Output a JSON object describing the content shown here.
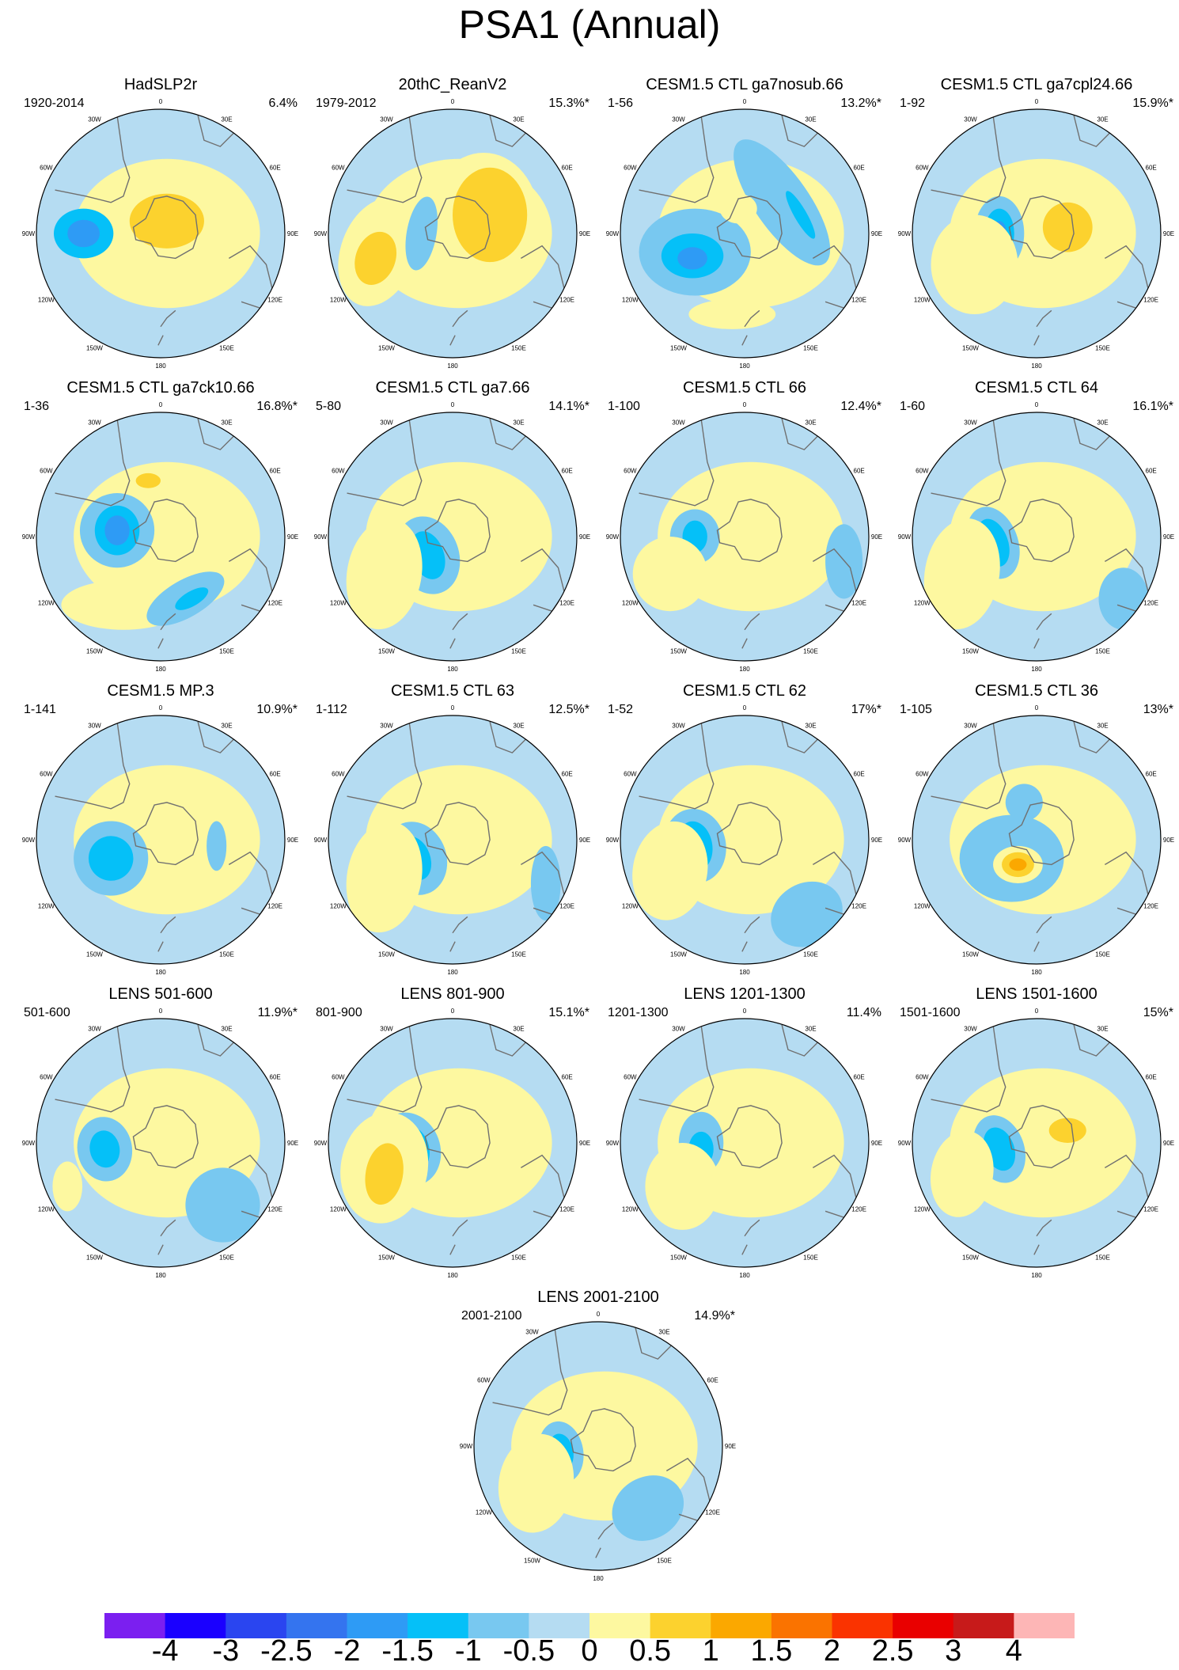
{
  "title": "PSA1 (Annual)",
  "longitude_labels": [
    "0",
    "30E",
    "60E",
    "90E",
    "120E",
    "150E",
    "180",
    "150W",
    "120W",
    "90W",
    "60W",
    "30W"
  ],
  "colorbar": {
    "labels": [
      "-4",
      "-3",
      "-2.5",
      "-2",
      "-1.5",
      "-1",
      "-0.5",
      "0",
      "0.5",
      "1",
      "1.5",
      "2",
      "2.5",
      "3",
      "4"
    ],
    "colors": [
      "#7b1ff0",
      "#1a00ff",
      "#2a45f0",
      "#3474ef",
      "#2e9bf5",
      "#05c0f8",
      "#78c8f0",
      "#b5dcf2",
      "#fdf8a0",
      "#fcd22e",
      "#fba800",
      "#fa7300",
      "#fa3300",
      "#e90000",
      "#c71a1a",
      "#fdb6b6"
    ]
  },
  "chart_data": {
    "type": "map",
    "projection": "south-polar-stereographic",
    "panels": [
      {
        "title": "HadSLP2r",
        "period": "1920-2014",
        "variance": "6.4%"
      },
      {
        "title": "20thC_ReanV2",
        "period": "1979-2012",
        "variance": "15.3%*"
      },
      {
        "title": "CESM1.5 CTL ga7nosub.66",
        "period": "1-56",
        "variance": "13.2%*"
      },
      {
        "title": "CESM1.5 CTL ga7cpl24.66",
        "period": "1-92",
        "variance": "15.9%*"
      },
      {
        "title": "CESM1.5 CTL ga7ck10.66",
        "period": "1-36",
        "variance": "16.8%*"
      },
      {
        "title": "CESM1.5 CTL ga7.66",
        "period": "5-80",
        "variance": "14.1%*"
      },
      {
        "title": "CESM1.5 CTL 66",
        "period": "1-100",
        "variance": "12.4%*"
      },
      {
        "title": "CESM1.5 CTL 64",
        "period": "1-60",
        "variance": "16.1%*"
      },
      {
        "title": "CESM1.5 MP.3",
        "period": "1-141",
        "variance": "10.9%*"
      },
      {
        "title": "CESM1.5 CTL 63",
        "period": "1-112",
        "variance": "12.5%*"
      },
      {
        "title": "CESM1.5 CTL 62",
        "period": "1-52",
        "variance": "17%*"
      },
      {
        "title": "CESM1.5 CTL 36",
        "period": "1-105",
        "variance": "13%*"
      },
      {
        "title": "LENS 501-600",
        "period": "501-600",
        "variance": "11.9%*"
      },
      {
        "title": "LENS 801-900",
        "period": "801-900",
        "variance": "15.1%*"
      },
      {
        "title": "LENS 1201-1300",
        "period": "1201-1300",
        "variance": "11.4%"
      },
      {
        "title": "LENS 1501-1600",
        "period": "1501-1600",
        "variance": "15%*"
      },
      {
        "title": "LENS 2001-2100",
        "period": "2001-2100",
        "variance": "14.9%*"
      }
    ]
  }
}
